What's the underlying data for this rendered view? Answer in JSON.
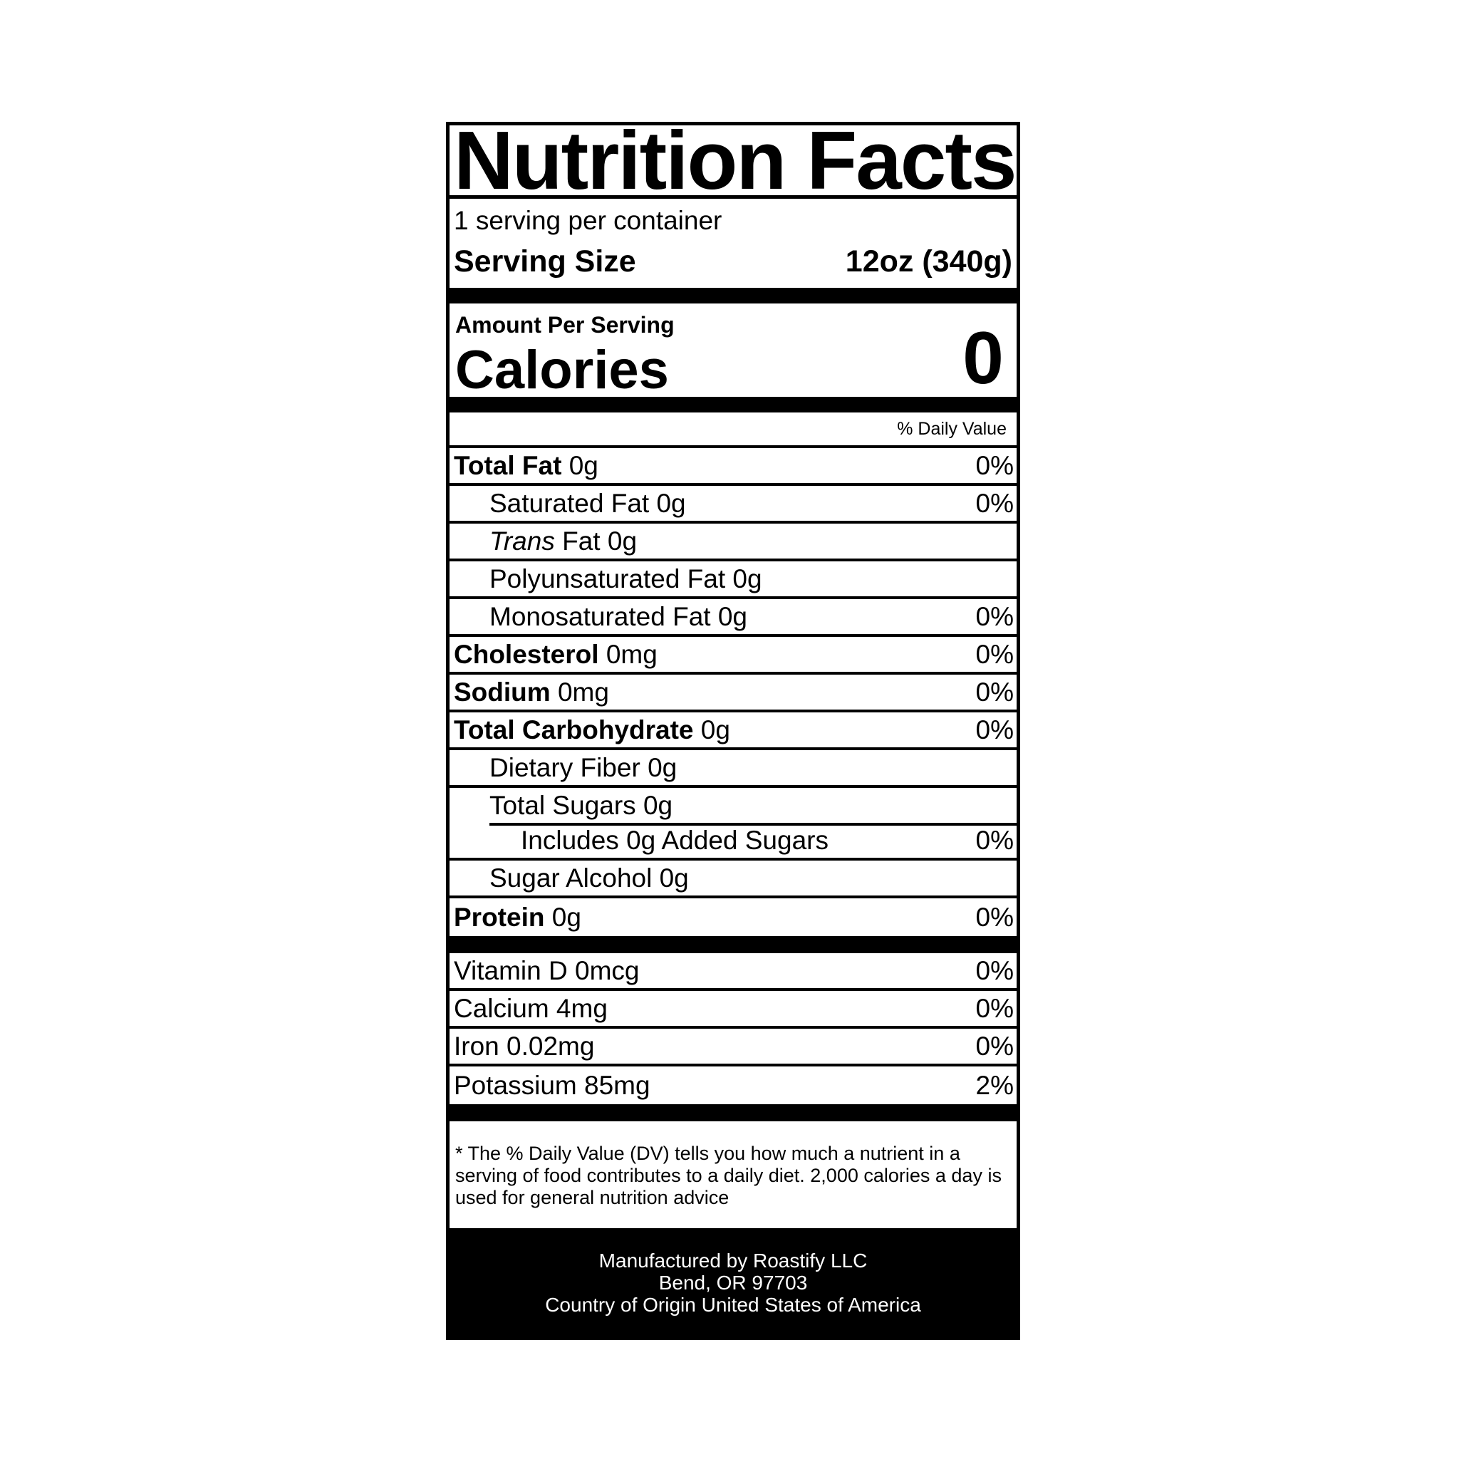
{
  "title": "Nutrition Facts",
  "servings_per_container": "1 serving per container",
  "serving_size": {
    "label": "Serving Size",
    "value": "12oz (340g)"
  },
  "amount_per_serving": "Amount Per Serving",
  "calories": {
    "label": "Calories",
    "value": "0"
  },
  "daily_value_header": "% Daily Value",
  "nutrients": [
    {
      "name": "Total Fat",
      "amount": "0g",
      "dv": "0%"
    },
    {
      "name": "Saturated Fat",
      "amount": "0g",
      "dv": "0%"
    },
    {
      "name_italic": "Trans",
      "name": "Fat",
      "amount": "0g",
      "dv": ""
    },
    {
      "name": "Polyunsaturated Fat",
      "amount": "0g",
      "dv": ""
    },
    {
      "name": "Monosaturated Fat",
      "amount": "0g",
      "dv": "0%"
    },
    {
      "name": "Cholesterol",
      "amount": "0mg",
      "dv": "0%"
    },
    {
      "name": "Sodium",
      "amount": "0mg",
      "dv": "0%"
    },
    {
      "name": "Total Carbohydrate",
      "amount": "0g",
      "dv": "0%"
    },
    {
      "name": "Dietary Fiber",
      "amount": "0g",
      "dv": ""
    },
    {
      "name": "Total Sugars",
      "amount": "0g",
      "dv": ""
    },
    {
      "name": "Includes 0g Added Sugars",
      "amount": "",
      "dv": "0%"
    },
    {
      "name": "Sugar Alcohol",
      "amount": "0g",
      "dv": ""
    },
    {
      "name": "Protein",
      "amount": "0g",
      "dv": "0%"
    }
  ],
  "vitamins": [
    {
      "name": "Vitamin D",
      "amount": "0mcg",
      "dv": "0%"
    },
    {
      "name": "Calcium",
      "amount": "4mg",
      "dv": "0%"
    },
    {
      "name": "Iron",
      "amount": "0.02mg",
      "dv": "0%"
    },
    {
      "name": "Potassium",
      "amount": "85mg",
      "dv": "2%"
    }
  ],
  "footnote": "* The % Daily Value (DV) tells you how much a nutrient in a serving of food contributes to a daily diet. 2,000 calories a day is used for general nutrition advice",
  "manufacturer": {
    "line1": "Manufactured by Roastify LLC",
    "line2": "Bend, OR 97703",
    "line3": "Country of Origin United States of America"
  }
}
